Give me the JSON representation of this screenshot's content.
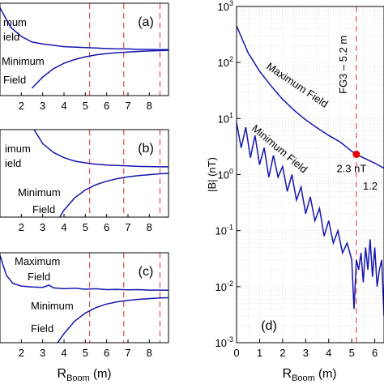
{
  "chart_data": [
    {
      "panel": "(a)",
      "type": "line",
      "xlim": [
        1,
        8.9
      ],
      "xticks": [
        "2",
        "3",
        "4",
        "5",
        "6",
        "7",
        "8"
      ],
      "vlines_x": [
        5.2,
        6.8,
        8.5
      ],
      "annotations": [
        "mum",
        "ield",
        "Minimum",
        "Field"
      ],
      "series": [
        {
          "x": [
            1.0,
            1.5,
            2.0,
            2.5,
            3.0,
            3.5,
            4.0,
            4.5,
            5.0,
            5.5,
            6.0,
            6.5,
            7.0,
            7.5,
            8.0,
            8.5,
            8.9
          ],
          "y": [
            0.95,
            0.74,
            0.64,
            0.58,
            0.56,
            0.545,
            0.53,
            0.525,
            0.52,
            0.515,
            0.51,
            0.505,
            0.505,
            0.5,
            0.5,
            0.498,
            0.497
          ]
        },
        {
          "x": [
            2.5,
            3.0,
            3.5,
            4.0,
            4.5,
            5.0,
            5.5,
            6.0,
            6.5,
            7.0,
            7.5,
            8.0,
            8.5,
            8.9
          ],
          "y": [
            0.08,
            0.2,
            0.29,
            0.35,
            0.39,
            0.42,
            0.44,
            0.455,
            0.465,
            0.472,
            0.478,
            0.483,
            0.487,
            0.49
          ]
        }
      ]
    },
    {
      "panel": "(b)",
      "type": "line",
      "xlim": [
        1,
        8.9
      ],
      "xticks": [
        "2",
        "3",
        "4",
        "5",
        "6",
        "7",
        "8"
      ],
      "vlines_x": [
        5.2,
        6.8,
        8.5
      ],
      "annotations": [
        "imum",
        "ield",
        "Minimum",
        "Field"
      ],
      "series": [
        {
          "x": [
            2.6,
            3.0,
            3.5,
            4.0,
            4.5,
            5.0,
            5.5,
            6.0,
            6.5,
            7.0,
            7.5,
            8.0,
            8.5,
            8.9
          ],
          "y": [
            1.0,
            0.84,
            0.74,
            0.68,
            0.64,
            0.62,
            0.605,
            0.595,
            0.59,
            0.585,
            0.58,
            0.578,
            0.575,
            0.575
          ]
        },
        {
          "x": [
            3.8,
            4.0,
            4.5,
            5.0,
            5.5,
            6.0,
            6.5,
            7.0,
            7.5,
            8.0,
            8.5,
            8.9
          ],
          "y": [
            0.0,
            0.08,
            0.22,
            0.31,
            0.37,
            0.41,
            0.44,
            0.46,
            0.475,
            0.485,
            0.495,
            0.5
          ]
        }
      ]
    },
    {
      "panel": "(c)",
      "type": "line",
      "xlim": [
        1,
        8.9
      ],
      "xticks": [
        "2",
        "3",
        "4",
        "5",
        "6",
        "7",
        "8"
      ],
      "vlines_x": [
        5.2,
        6.8,
        8.5
      ],
      "xlabel_main": "R",
      "xlabel_sub": "Boom",
      "xlabel_unit": "(m)",
      "annotations": [
        "Maximum",
        "Field",
        "Minimum",
        "Field"
      ],
      "series": [
        {
          "x": [
            1.0,
            1.3,
            1.6,
            2.0,
            2.5,
            3.0,
            3.3,
            3.5,
            4.0,
            4.5,
            5.0,
            5.5,
            6.0,
            6.5,
            7.0,
            7.5,
            8.0,
            8.5,
            8.9
          ],
          "y": [
            0.97,
            0.75,
            0.66,
            0.63,
            0.62,
            0.615,
            0.64,
            0.61,
            0.6,
            0.605,
            0.595,
            0.6,
            0.59,
            0.592,
            0.588,
            0.59,
            0.585,
            0.585,
            0.583
          ]
        },
        {
          "x": [
            3.7,
            4.0,
            4.5,
            5.0,
            5.5,
            6.0,
            6.5,
            7.0,
            7.5,
            8.0,
            8.5,
            8.9
          ],
          "y": [
            0.0,
            0.1,
            0.24,
            0.33,
            0.39,
            0.43,
            0.455,
            0.47,
            0.482,
            0.49,
            0.497,
            0.5
          ]
        }
      ]
    },
    {
      "panel": "(d)",
      "type": "line",
      "yscale": "log",
      "xlim": [
        0,
        6.4
      ],
      "ylim": [
        0.001,
        1000
      ],
      "xticks": [
        "0",
        "1",
        "2",
        "3",
        "4",
        "5",
        "6"
      ],
      "yticks_exp": [
        "-3",
        "-2",
        "-1",
        "0",
        "1",
        "2",
        "3"
      ],
      "ylabel": "|B| (nT)",
      "xlabel_main": "R",
      "xlabel_sub": "Boom",
      "xlabel_unit": "(m)",
      "vline_x": 5.2,
      "vline_label": "FG3 – 5.2 m",
      "marker": {
        "x": 5.2,
        "y": 2.3,
        "label": "2.3 nT",
        "color": "#e00000"
      },
      "annotations": [
        "Maximum Field",
        "Minimum Field",
        "1.2"
      ],
      "series": [
        {
          "name": "Maximum Field",
          "x": [
            0,
            0.5,
            1.0,
            1.5,
            2.0,
            2.5,
            3.0,
            3.5,
            4.0,
            4.5,
            5.0,
            5.2,
            5.5,
            6.0,
            6.4
          ],
          "y": [
            450,
            150,
            70,
            38,
            22,
            14,
            9.5,
            6.8,
            5.0,
            3.8,
            2.6,
            2.3,
            2.0,
            1.6,
            1.3
          ]
        },
        {
          "name": "Minimum Field",
          "x": [
            0,
            0.2,
            0.4,
            0.6,
            0.8,
            1.0,
            1.2,
            1.4,
            1.6,
            1.8,
            2.0,
            2.2,
            2.4,
            2.6,
            2.8,
            3.0,
            3.2,
            3.4,
            3.6,
            3.8,
            4.0,
            4.2,
            4.4,
            4.6,
            4.8,
            5.0,
            5.1,
            5.2,
            5.3,
            5.4,
            5.5,
            5.6,
            5.7,
            5.8,
            5.9,
            6.0,
            6.1,
            6.2,
            6.3,
            6.4
          ],
          "y": [
            8.5,
            3,
            7,
            2,
            5,
            1.5,
            3,
            0.9,
            2.2,
            0.9,
            1.4,
            0.5,
            1.0,
            0.35,
            0.6,
            0.2,
            0.4,
            0.15,
            0.25,
            0.08,
            0.15,
            0.06,
            0.1,
            0.04,
            0.06,
            0.03,
            0.004,
            0.03,
            0.02,
            0.04,
            0.012,
            0.05,
            0.02,
            0.07,
            0.015,
            0.05,
            0.01,
            0.02,
            0.03,
            0.003
          ]
        }
      ]
    }
  ]
}
